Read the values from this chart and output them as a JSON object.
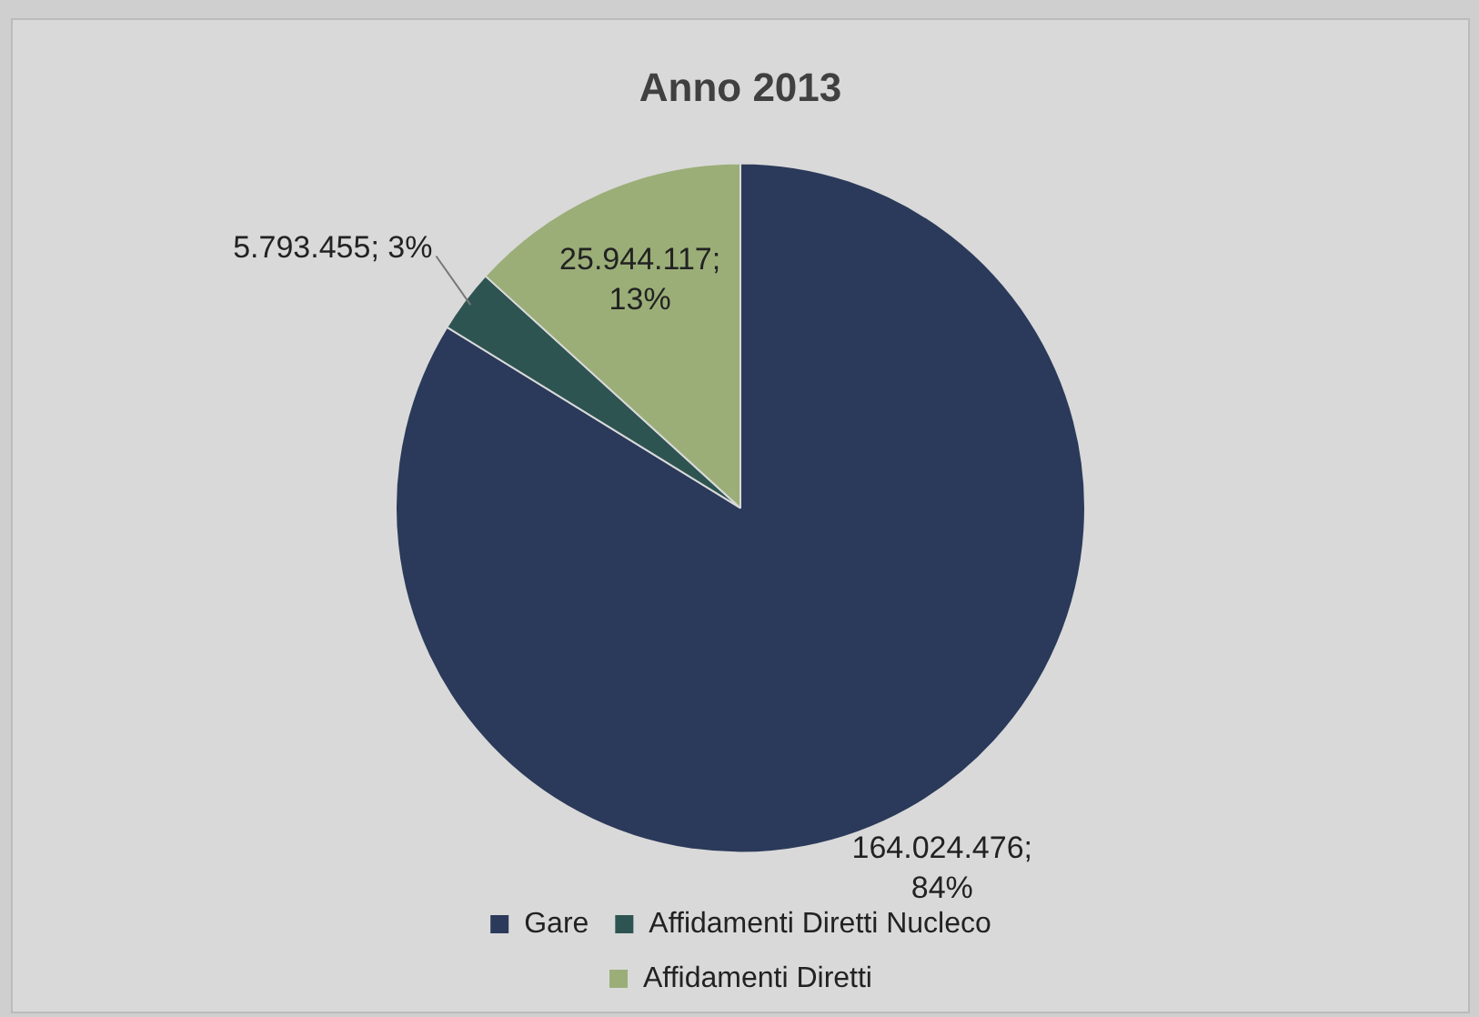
{
  "chart_data": {
    "type": "pie",
    "title": "Anno 2013",
    "categories": [
      "Gare",
      "Affidamenti Diretti Nucleco",
      "Affidamenti Diretti"
    ],
    "values": [
      164024476,
      5793455,
      25944117
    ],
    "colors": [
      "#2b3a5a",
      "#2e5452",
      "#9bae78"
    ],
    "value_labels": [
      "164.024.476; 84%",
      "5.793.455; 3%",
      "25.944.117; 13%"
    ],
    "legend": "bottom"
  }
}
